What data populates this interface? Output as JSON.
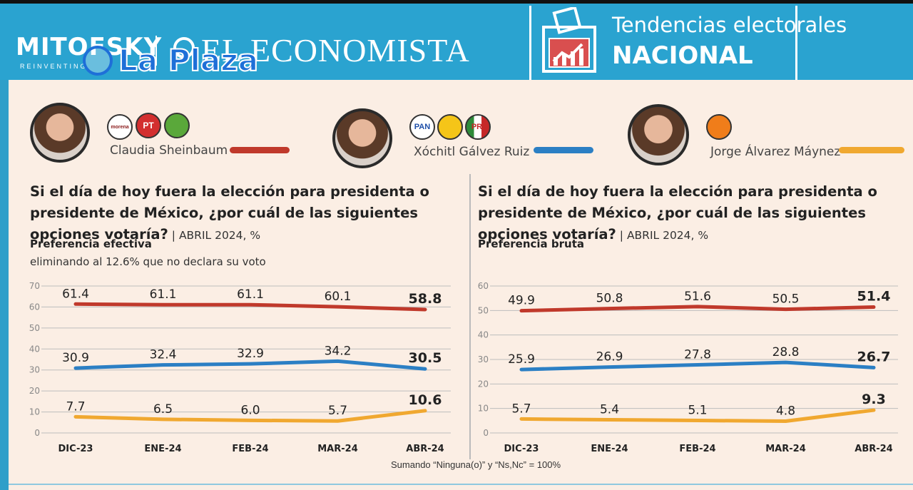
{
  "header": {
    "brand_left": "MITOFSKY",
    "brand_left_sub": "REINVENTING",
    "brand_right": "EL ECONOMISTA",
    "watermark": "La Plaza",
    "title_line1": "Tendencias electorales",
    "title_line2": "NACIONAL"
  },
  "colors": {
    "sheinbaum": "#c0392b",
    "galvez": "#2b7fc4",
    "maynez": "#f0a830",
    "header_bg": "#2aa3d0",
    "panel_bg": "#fbeee4"
  },
  "candidates": [
    {
      "name": "Claudia Sheinbaum",
      "parties": [
        "morena",
        "PT",
        "PVEM"
      ]
    },
    {
      "name": "Xóchitl Gálvez Ruiz",
      "parties": [
        "PAN",
        "PRD",
        "PRI"
      ]
    },
    {
      "name": "Jorge Álvarez Máynez",
      "parties": [
        "MC"
      ]
    }
  ],
  "question": {
    "text": "Si el día de hoy fuera la elección para presidenta o presidente de México, ¿por cuál de las siguientes opciones votaría?",
    "sep": " | ",
    "date": "ABRIL 2024, %"
  },
  "left_panel": {
    "label": "Preferencia efectiva",
    "sublabel": "eliminando al 12.6% que no declara su voto"
  },
  "right_panel": {
    "label": "Preferencia bruta"
  },
  "footnote": "Sumando “Ninguna(o)” y “Ns,Nc” = 100%",
  "chart_data": [
    {
      "type": "line",
      "categories": [
        "DIC-23",
        "ENE-24",
        "FEB-24",
        "MAR-24",
        "ABR-24"
      ],
      "ylim": [
        0,
        70
      ],
      "yticks": [
        0,
        10,
        20,
        30,
        40,
        50,
        60,
        70
      ],
      "grid": true,
      "series": [
        {
          "name": "Claudia Sheinbaum",
          "color": "#c0392b",
          "values": [
            61.4,
            61.1,
            61.1,
            60.1,
            58.8
          ]
        },
        {
          "name": "Xóchitl Gálvez Ruiz",
          "color": "#2b7fc4",
          "values": [
            30.9,
            32.4,
            32.9,
            34.2,
            30.5
          ]
        },
        {
          "name": "Jorge Álvarez Máynez",
          "color": "#f0a830",
          "values": [
            7.7,
            6.5,
            6.0,
            5.7,
            10.6
          ]
        }
      ]
    },
    {
      "type": "line",
      "categories": [
        "DIC-23",
        "ENE-24",
        "FEB-24",
        "MAR-24",
        "ABR-24"
      ],
      "ylim": [
        0,
        60
      ],
      "yticks": [
        0,
        10,
        20,
        30,
        40,
        50,
        60
      ],
      "grid": true,
      "series": [
        {
          "name": "Claudia Sheinbaum",
          "color": "#c0392b",
          "values": [
            49.9,
            50.8,
            51.6,
            50.5,
            51.4
          ]
        },
        {
          "name": "Xóchitl Gálvez Ruiz",
          "color": "#2b7fc4",
          "values": [
            25.9,
            26.9,
            27.8,
            28.8,
            26.7
          ]
        },
        {
          "name": "Jorge Álvarez Máynez",
          "color": "#f0a830",
          "values": [
            5.7,
            5.4,
            5.1,
            4.8,
            9.3
          ]
        }
      ]
    }
  ]
}
